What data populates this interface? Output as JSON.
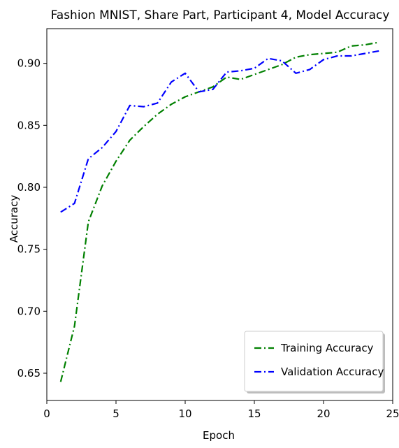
{
  "chart_data": {
    "type": "line",
    "title": "Fashion MNIST, Share Part, Participant 4, Model Accuracy",
    "xlabel": "Epoch",
    "ylabel": "Accuracy",
    "xlim": [
      0,
      25
    ],
    "ylim": [
      0.628,
      0.928
    ],
    "xticks": [
      0,
      5,
      10,
      15,
      20,
      25
    ],
    "yticks": [
      0.65,
      0.7,
      0.75,
      0.8,
      0.85,
      0.9
    ],
    "grid": false,
    "legend_position": "lower-right",
    "x": [
      1,
      2,
      3,
      4,
      5,
      6,
      7,
      8,
      9,
      10,
      11,
      12,
      13,
      14,
      15,
      16,
      17,
      18,
      19,
      20,
      21,
      22,
      23,
      24
    ],
    "series": [
      {
        "name": "Training Accuracy",
        "color": "#008000",
        "values": [
          0.643,
          0.688,
          0.772,
          0.801,
          0.821,
          0.838,
          0.849,
          0.859,
          0.867,
          0.873,
          0.877,
          0.881,
          0.889,
          0.887,
          0.891,
          0.895,
          0.899,
          0.905,
          0.907,
          0.908,
          0.909,
          0.914,
          0.915,
          0.917
        ]
      },
      {
        "name": "Validation Accuracy",
        "color": "#0000ff",
        "values": [
          0.78,
          0.787,
          0.823,
          0.832,
          0.845,
          0.866,
          0.865,
          0.868,
          0.885,
          0.892,
          0.877,
          0.879,
          0.893,
          0.894,
          0.896,
          0.904,
          0.902,
          0.892,
          0.895,
          0.903,
          0.906,
          0.906,
          0.908,
          0.91
        ]
      }
    ]
  }
}
